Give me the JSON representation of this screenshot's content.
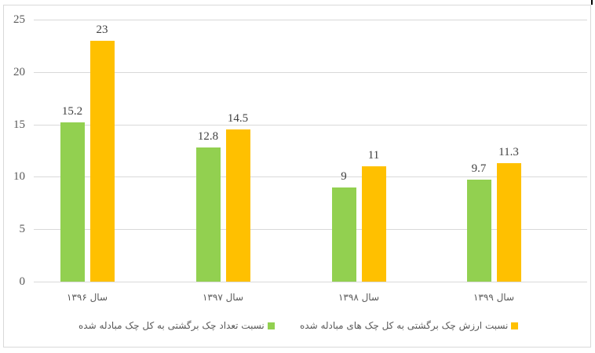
{
  "chart_data": {
    "type": "bar",
    "title": "",
    "xlabel": "",
    "ylabel": "",
    "ylim": [
      0,
      25
    ],
    "yticks": [
      0,
      5,
      10,
      15,
      20,
      25
    ],
    "grid": true,
    "legend_position": "bottom",
    "categories": [
      "سال ۱۳۹۶",
      "سال ۱۳۹۷",
      "سال ۱۳۹۸",
      "سال ۱۳۹۹"
    ],
    "series": [
      {
        "name": "نسبت تعداد چک برگشتی به کل چک مبادله شده",
        "color": "#92d050",
        "values": [
          15.2,
          12.8,
          9,
          9.7
        ],
        "labels": [
          "15.2",
          "12.8",
          "9",
          "9.7"
        ]
      },
      {
        "name": "نسبت ارزش چک برگشتی به کل چک های مبادله شده",
        "color": "#ffc000",
        "values": [
          23,
          14.5,
          11,
          11.3
        ],
        "labels": [
          "23",
          "14.5",
          "11",
          "11.3"
        ]
      }
    ]
  },
  "axis": {
    "y_ticks": [
      "0",
      "5",
      "10",
      "15",
      "20",
      "25"
    ]
  },
  "legend": {
    "count_label": "نسبت تعداد چک برگشتی به کل چک مبادله شده",
    "value_label": "نسبت ارزش چک برگشتی به کل چک های مبادله شده"
  }
}
